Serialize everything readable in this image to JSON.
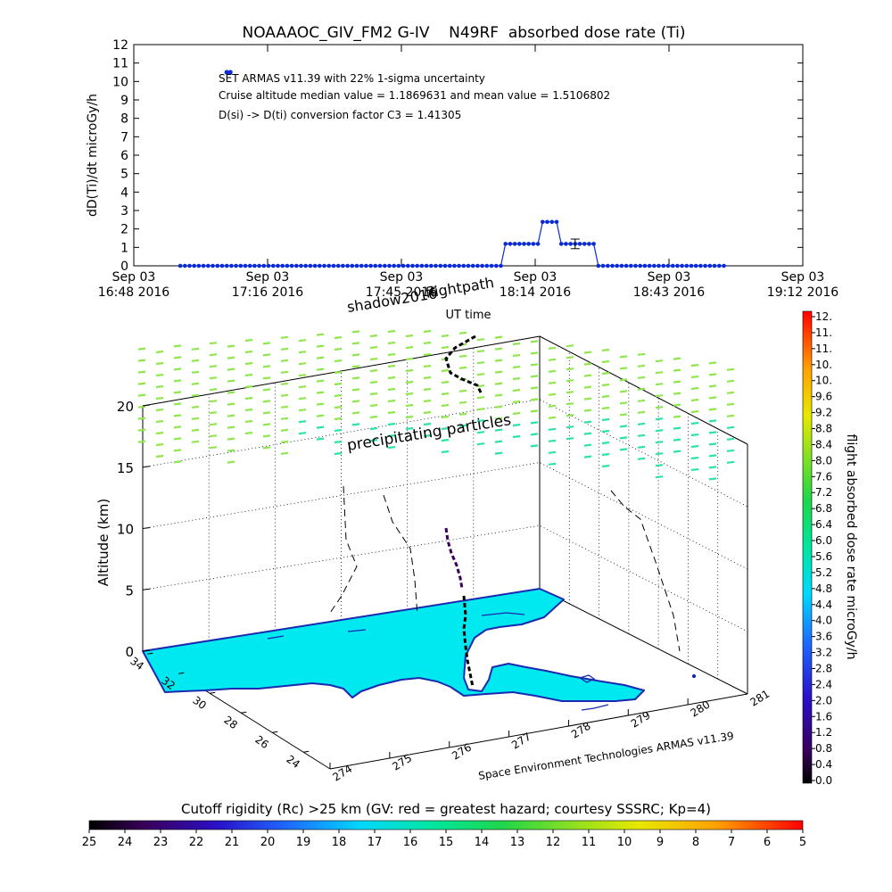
{
  "chart_data": [
    {
      "type": "line",
      "title": "NOAAAOC_GIV_FM2 G-IV    N49RF  absorbed dose rate (Ti)",
      "ylabel": "dD(Ti)/dt microGy/h",
      "xlabel": "UT time",
      "ylim": [
        0,
        12
      ],
      "yticks": [
        "0",
        "1",
        "2",
        "3",
        "4",
        "5",
        "6",
        "7",
        "8",
        "9",
        "10",
        "11",
        "12"
      ],
      "xticks": [
        {
          "l1": "Sep 03",
          "l2": "16:48 2016"
        },
        {
          "l1": "Sep 03",
          "l2": "17:16 2016"
        },
        {
          "l1": "Sep 03",
          "l2": "17:45 2016"
        },
        {
          "l1": "Sep 03",
          "l2": "18:14 2016"
        },
        {
          "l1": "Sep 03",
          "l2": "18:43 2016"
        },
        {
          "l1": "Sep 03",
          "l2": "19:12 2016"
        }
      ],
      "annotations": [
        "SET ARMAS v11.39 with 22% 1-sigma uncertainty",
        "Cruise altitude median value = 1.1869631 and mean value = 1.5106802",
        "D(si) -> D(ti) conversion factor C3 = 1.41305"
      ],
      "series": [
        {
          "color": "#0a2bd6",
          "segments": [
            {
              "from": "16:58",
              "to": "18:07",
              "value": 0
            },
            {
              "from": "18:08",
              "to": "18:15",
              "value": 1.19
            },
            {
              "from": "18:16",
              "to": "18:19",
              "value": 2.38
            },
            {
              "from": "18:20",
              "to": "18:27",
              "value": 1.19
            },
            {
              "from": "18:28",
              "to": "18:55",
              "value": 0
            }
          ],
          "outlier": {
            "time": "17:08",
            "value": 10.5
          }
        }
      ],
      "error_bar": {
        "time": "18:23",
        "value": 1.19,
        "low": 0.93,
        "high": 1.45
      }
    },
    {
      "type": "scatter",
      "ylabel": "Altitude (km)",
      "zticks": [
        "0",
        "5",
        "10",
        "15",
        "20"
      ],
      "lat_ticks": [
        "34",
        "32",
        "30",
        "28",
        "26",
        "24"
      ],
      "lon_ticks": [
        "274",
        "275",
        "276",
        "277",
        "278",
        "279",
        "280",
        "281"
      ],
      "labels": {
        "shadow": "shadow2016",
        "flightpath": "flightpath",
        "precip": "precipitating particles",
        "credit": "Space Environment Technologies ARMAS v11.39"
      }
    }
  ],
  "colorbar_right": {
    "label": "flight absorbed dose rate microGy/h",
    "ticks": [
      "12.",
      "11.",
      "11.",
      "10.",
      "10.",
      "9.6",
      "9.2",
      "8.8",
      "8.4",
      "8.0",
      "7.6",
      "7.2",
      "6.8",
      "6.4",
      "6.0",
      "5.6",
      "5.2",
      "4.8",
      "4.4",
      "4.0",
      "3.6",
      "3.2",
      "2.8",
      "2.4",
      "2.0",
      "1.6",
      "1.2",
      "0.8",
      "0.4",
      "0.0"
    ]
  },
  "colorbar_bottom": {
    "label": "Cutoff rigidity (Rc) >25 km (GV: red = greatest hazard; courtesy SSSRC; Kp=4)",
    "ticks": [
      "25",
      "24",
      "23",
      "22",
      "21",
      "20",
      "19",
      "18",
      "17",
      "16",
      "15",
      "14",
      "13",
      "12",
      "11",
      "10",
      "9",
      "8",
      "7",
      "6",
      "5"
    ]
  },
  "colors": {
    "series": "#0a2bd6",
    "land": "#00e8f0",
    "coast": "#1a2ab0",
    "precip_green": "#8ee84a",
    "precip_teal": "#28e6a0"
  }
}
